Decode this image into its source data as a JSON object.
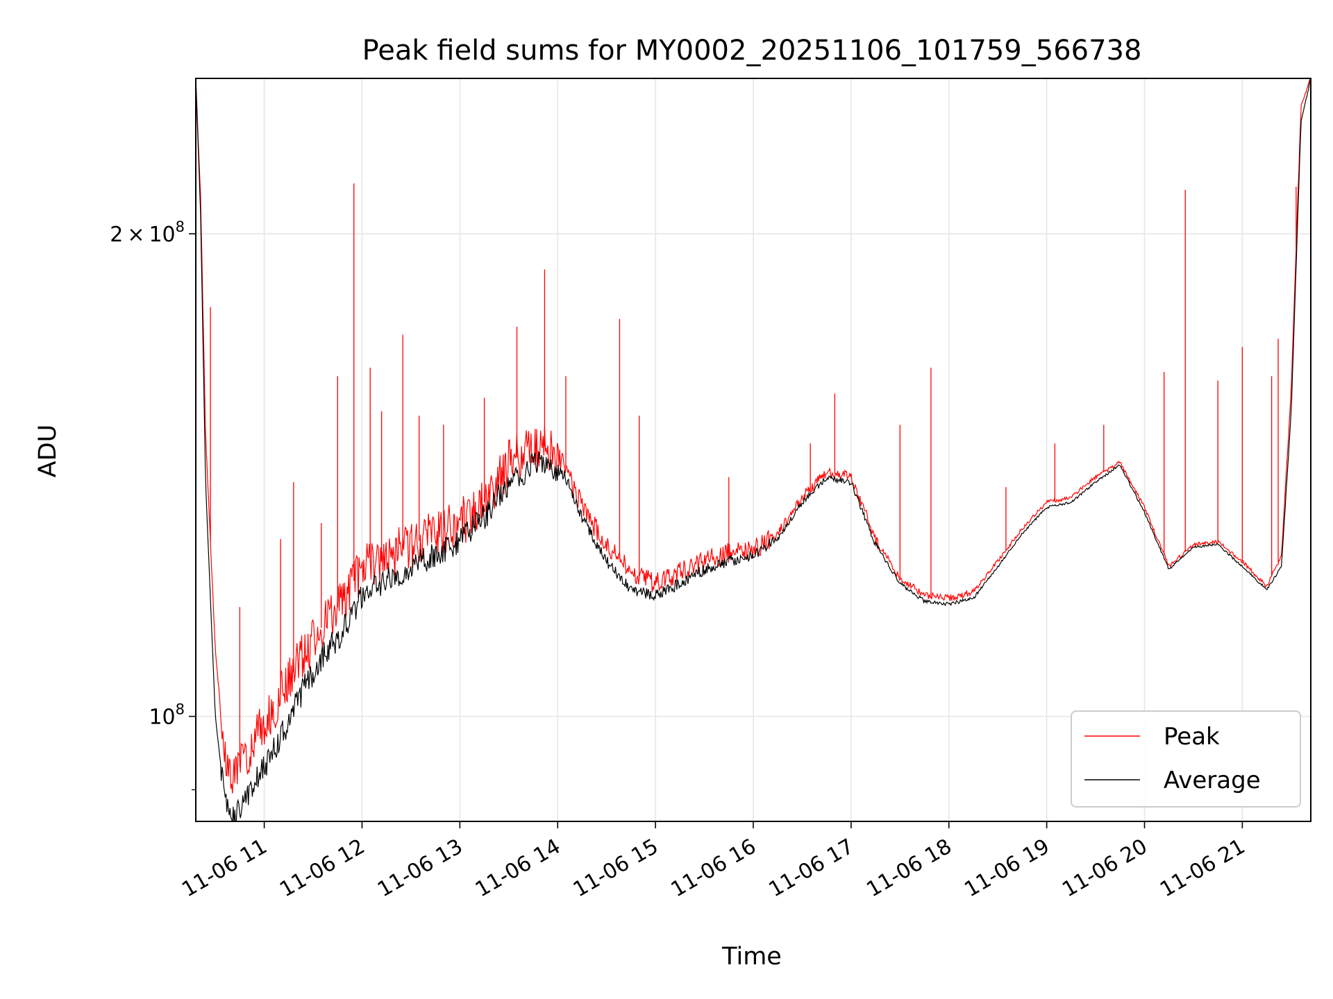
{
  "chart_data": {
    "type": "line",
    "title": "Peak field sums for MY0002_20251106_101759_566738",
    "xlabel": "Time",
    "ylabel": "ADU",
    "y_scale": "log",
    "grid": true,
    "legend_position": "lower-right",
    "xlim": [
      "2025-11-06T10:18:00",
      "2025-11-06T21:42:00"
    ],
    "ylim": [
      86000000,
      250000000
    ],
    "x_ticks": [
      {
        "value": "2025-11-06T11:00:00",
        "label": "11-06 11"
      },
      {
        "value": "2025-11-06T12:00:00",
        "label": "11-06 12"
      },
      {
        "value": "2025-11-06T13:00:00",
        "label": "11-06 13"
      },
      {
        "value": "2025-11-06T14:00:00",
        "label": "11-06 14"
      },
      {
        "value": "2025-11-06T15:00:00",
        "label": "11-06 15"
      },
      {
        "value": "2025-11-06T16:00:00",
        "label": "11-06 16"
      },
      {
        "value": "2025-11-06T17:00:00",
        "label": "11-06 17"
      },
      {
        "value": "2025-11-06T18:00:00",
        "label": "11-06 18"
      },
      {
        "value": "2025-11-06T19:00:00",
        "label": "11-06 19"
      },
      {
        "value": "2025-11-06T20:00:00",
        "label": "11-06 20"
      },
      {
        "value": "2025-11-06T21:00:00",
        "label": "11-06 21"
      }
    ],
    "y_major_ticks": [
      {
        "value": 100000000,
        "base": "10",
        "exp": "8"
      },
      {
        "value": 200000000,
        "mant": "2",
        "times": "×",
        "base": "10",
        "exp": "8"
      }
    ],
    "y_minor_ticks": [
      90000000
    ],
    "series": [
      {
        "name": "Peak",
        "color": "#ff0000",
        "points": [
          [
            "2025-11-06T10:18:00",
            250000000
          ],
          [
            "2025-11-06T10:21:00",
            210000000
          ],
          [
            "2025-11-06T10:24:00",
            150000000
          ],
          [
            "2025-11-06T10:30:00",
            110000000
          ],
          [
            "2025-11-06T10:36:00",
            94000000
          ],
          [
            "2025-11-06T10:42:00",
            92000000
          ],
          [
            "2025-11-06T10:48:00",
            94000000
          ],
          [
            "2025-11-06T10:54:00",
            97000000
          ],
          [
            "2025-11-06T11:00:00",
            99000000
          ],
          [
            "2025-11-06T11:12:00",
            104000000
          ],
          [
            "2025-11-06T11:24:00",
            109000000
          ],
          [
            "2025-11-06T11:36:00",
            114000000
          ],
          [
            "2025-11-06T11:48:00",
            118000000
          ],
          [
            "2025-11-06T12:00:00",
            124000000
          ],
          [
            "2025-11-06T12:15:00",
            126000000
          ],
          [
            "2025-11-06T12:30:00",
            128000000
          ],
          [
            "2025-11-06T12:45:00",
            130000000
          ],
          [
            "2025-11-06T13:00:00",
            132000000
          ],
          [
            "2025-11-06T13:15:00",
            136000000
          ],
          [
            "2025-11-06T13:30:00",
            144000000
          ],
          [
            "2025-11-06T13:45:00",
            147000000
          ],
          [
            "2025-11-06T13:55:00",
            147500000
          ],
          [
            "2025-11-06T14:05:00",
            143000000
          ],
          [
            "2025-11-06T14:15:00",
            135000000
          ],
          [
            "2025-11-06T14:30:00",
            128000000
          ],
          [
            "2025-11-06T14:45:00",
            123000000
          ],
          [
            "2025-11-06T15:00:00",
            121000000
          ],
          [
            "2025-11-06T15:15:00",
            123000000
          ],
          [
            "2025-11-06T15:30:00",
            125000000
          ],
          [
            "2025-11-06T15:45:00",
            126500000
          ],
          [
            "2025-11-06T16:00:00",
            127000000
          ],
          [
            "2025-11-06T16:15:00",
            130000000
          ],
          [
            "2025-11-06T16:30:00",
            137000000
          ],
          [
            "2025-11-06T16:45:00",
            142000000
          ],
          [
            "2025-11-06T17:00:00",
            141000000
          ],
          [
            "2025-11-06T17:15:00",
            129000000
          ],
          [
            "2025-11-06T17:30:00",
            122000000
          ],
          [
            "2025-11-06T17:45:00",
            119000000
          ],
          [
            "2025-11-06T18:00:00",
            118500000
          ],
          [
            "2025-11-06T18:15:00",
            119500000
          ],
          [
            "2025-11-06T18:30:00",
            125000000
          ],
          [
            "2025-11-06T18:45:00",
            131000000
          ],
          [
            "2025-11-06T19:00:00",
            136000000
          ],
          [
            "2025-11-06T19:15:00",
            137000000
          ],
          [
            "2025-11-06T19:30:00",
            141000000
          ],
          [
            "2025-11-06T19:45:00",
            144000000
          ],
          [
            "2025-11-06T20:00:00",
            135000000
          ],
          [
            "2025-11-06T20:15:00",
            124000000
          ],
          [
            "2025-11-06T20:30:00",
            128000000
          ],
          [
            "2025-11-06T20:45:00",
            128500000
          ],
          [
            "2025-11-06T21:00:00",
            125000000
          ],
          [
            "2025-11-06T21:15:00",
            120500000
          ],
          [
            "2025-11-06T21:24:00",
            126000000
          ],
          [
            "2025-11-06T21:30:00",
            160000000
          ],
          [
            "2025-11-06T21:36:00",
            240000000
          ],
          [
            "2025-11-06T21:42:00",
            250000000
          ]
        ],
        "spikes": [
          [
            "2025-11-06T10:27:00",
            180000000
          ],
          [
            "2025-11-06T10:45:00",
            117000000
          ],
          [
            "2025-11-06T11:10:00",
            129000000
          ],
          [
            "2025-11-06T11:18:00",
            140000000
          ],
          [
            "2025-11-06T11:35:00",
            132000000
          ],
          [
            "2025-11-06T11:45:00",
            163000000
          ],
          [
            "2025-11-06T11:55:00",
            215000000
          ],
          [
            "2025-11-06T12:05:00",
            165000000
          ],
          [
            "2025-11-06T12:12:00",
            155000000
          ],
          [
            "2025-11-06T12:25:00",
            173000000
          ],
          [
            "2025-11-06T12:35:00",
            154000000
          ],
          [
            "2025-11-06T12:50:00",
            152000000
          ],
          [
            "2025-11-06T13:15:00",
            158000000
          ],
          [
            "2025-11-06T13:35:00",
            175000000
          ],
          [
            "2025-11-06T13:52:00",
            190000000
          ],
          [
            "2025-11-06T14:05:00",
            163000000
          ],
          [
            "2025-11-06T14:38:00",
            177000000
          ],
          [
            "2025-11-06T14:50:00",
            154000000
          ],
          [
            "2025-11-06T15:45:00",
            141000000
          ],
          [
            "2025-11-06T16:35:00",
            148000000
          ],
          [
            "2025-11-06T16:50:00",
            159000000
          ],
          [
            "2025-11-06T17:30:00",
            152000000
          ],
          [
            "2025-11-06T17:49:00",
            165000000
          ],
          [
            "2025-11-06T18:35:00",
            139000000
          ],
          [
            "2025-11-06T19:05:00",
            148000000
          ],
          [
            "2025-11-06T19:35:00",
            152000000
          ],
          [
            "2025-11-06T20:12:00",
            164000000
          ],
          [
            "2025-11-06T20:25:00",
            213000000
          ],
          [
            "2025-11-06T20:45:00",
            162000000
          ],
          [
            "2025-11-06T21:00:00",
            170000000
          ],
          [
            "2025-11-06T21:18:00",
            163000000
          ],
          [
            "2025-11-06T21:22:00",
            172000000
          ],
          [
            "2025-11-06T21:33:00",
            214000000
          ]
        ]
      },
      {
        "name": "Average",
        "color": "#000000",
        "points": [
          [
            "2025-11-06T10:18:00",
            250000000
          ],
          [
            "2025-11-06T10:21:00",
            205000000
          ],
          [
            "2025-11-06T10:24:00",
            140000000
          ],
          [
            "2025-11-06T10:30:00",
            100000000
          ],
          [
            "2025-11-06T10:36:00",
            88000000
          ],
          [
            "2025-11-06T10:42:00",
            86500000
          ],
          [
            "2025-11-06T10:48:00",
            88500000
          ],
          [
            "2025-11-06T10:54:00",
            91000000
          ],
          [
            "2025-11-06T11:00:00",
            93000000
          ],
          [
            "2025-11-06T11:12:00",
            98000000
          ],
          [
            "2025-11-06T11:24:00",
            104000000
          ],
          [
            "2025-11-06T11:36:00",
            109000000
          ],
          [
            "2025-11-06T11:48:00",
            113000000
          ],
          [
            "2025-11-06T12:00:00",
            119000000
          ],
          [
            "2025-11-06T12:15:00",
            121500000
          ],
          [
            "2025-11-06T12:30:00",
            124000000
          ],
          [
            "2025-11-06T12:45:00",
            126000000
          ],
          [
            "2025-11-06T13:00:00",
            129000000
          ],
          [
            "2025-11-06T13:15:00",
            133000000
          ],
          [
            "2025-11-06T13:30:00",
            140000000
          ],
          [
            "2025-11-06T13:45:00",
            143500000
          ],
          [
            "2025-11-06T13:55:00",
            144000000
          ],
          [
            "2025-11-06T14:05:00",
            141000000
          ],
          [
            "2025-11-06T14:15:00",
            133000000
          ],
          [
            "2025-11-06T14:30:00",
            125000000
          ],
          [
            "2025-11-06T14:45:00",
            120000000
          ],
          [
            "2025-11-06T15:00:00",
            119000000
          ],
          [
            "2025-11-06T15:15:00",
            121000000
          ],
          [
            "2025-11-06T15:30:00",
            123500000
          ],
          [
            "2025-11-06T15:45:00",
            125000000
          ],
          [
            "2025-11-06T16:00:00",
            126000000
          ],
          [
            "2025-11-06T16:15:00",
            129000000
          ],
          [
            "2025-11-06T16:30:00",
            136000000
          ],
          [
            "2025-11-06T16:45:00",
            141000000
          ],
          [
            "2025-11-06T17:00:00",
            140000000
          ],
          [
            "2025-11-06T17:15:00",
            128000000
          ],
          [
            "2025-11-06T17:30:00",
            121000000
          ],
          [
            "2025-11-06T17:45:00",
            118000000
          ],
          [
            "2025-11-06T18:00:00",
            117500000
          ],
          [
            "2025-11-06T18:15:00",
            118500000
          ],
          [
            "2025-11-06T18:30:00",
            124000000
          ],
          [
            "2025-11-06T18:45:00",
            130000000
          ],
          [
            "2025-11-06T19:00:00",
            135000000
          ],
          [
            "2025-11-06T19:15:00",
            136000000
          ],
          [
            "2025-11-06T19:30:00",
            140000000
          ],
          [
            "2025-11-06T19:45:00",
            143500000
          ],
          [
            "2025-11-06T20:00:00",
            134000000
          ],
          [
            "2025-11-06T20:15:00",
            123500000
          ],
          [
            "2025-11-06T20:30:00",
            127500000
          ],
          [
            "2025-11-06T20:45:00",
            128000000
          ],
          [
            "2025-11-06T21:00:00",
            124000000
          ],
          [
            "2025-11-06T21:15:00",
            120000000
          ],
          [
            "2025-11-06T21:24:00",
            124000000
          ],
          [
            "2025-11-06T21:30:00",
            155000000
          ],
          [
            "2025-11-06T21:36:00",
            235000000
          ],
          [
            "2025-11-06T21:42:00",
            250000000
          ]
        ]
      }
    ]
  }
}
